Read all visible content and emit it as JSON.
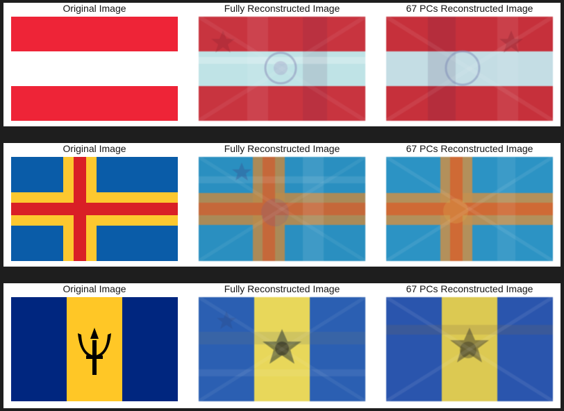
{
  "rows": [
    {
      "flag": "austria",
      "titles": [
        "Original Image",
        "Fully Reconstructed Image",
        "67 PCs Reconstructed Image"
      ],
      "colors": {
        "red": "#ee2437",
        "white": "#ffffff",
        "recon_red": "#c8343f",
        "recon_white": "#bfe3e6"
      }
    },
    {
      "flag": "aland",
      "titles": [
        "Original Image",
        "Fully Reconstructed Image",
        "67 PCs Reconstructed Image"
      ],
      "colors": {
        "blue": "#0a5ca8",
        "yellow": "#fdc82f",
        "red": "#d91f26",
        "recon_blue": "#2a8fc0",
        "recon_cross": "#c5683a"
      }
    },
    {
      "flag": "barbados",
      "titles": [
        "Original Image",
        "Fully Reconstructed Image",
        "67 PCs Reconstructed Image"
      ],
      "colors": {
        "navy": "#00267f",
        "gold": "#ffc726",
        "black": "#000000",
        "recon_blue": "#2b5fb2",
        "recon_gold": "#e8d75a"
      }
    }
  ]
}
